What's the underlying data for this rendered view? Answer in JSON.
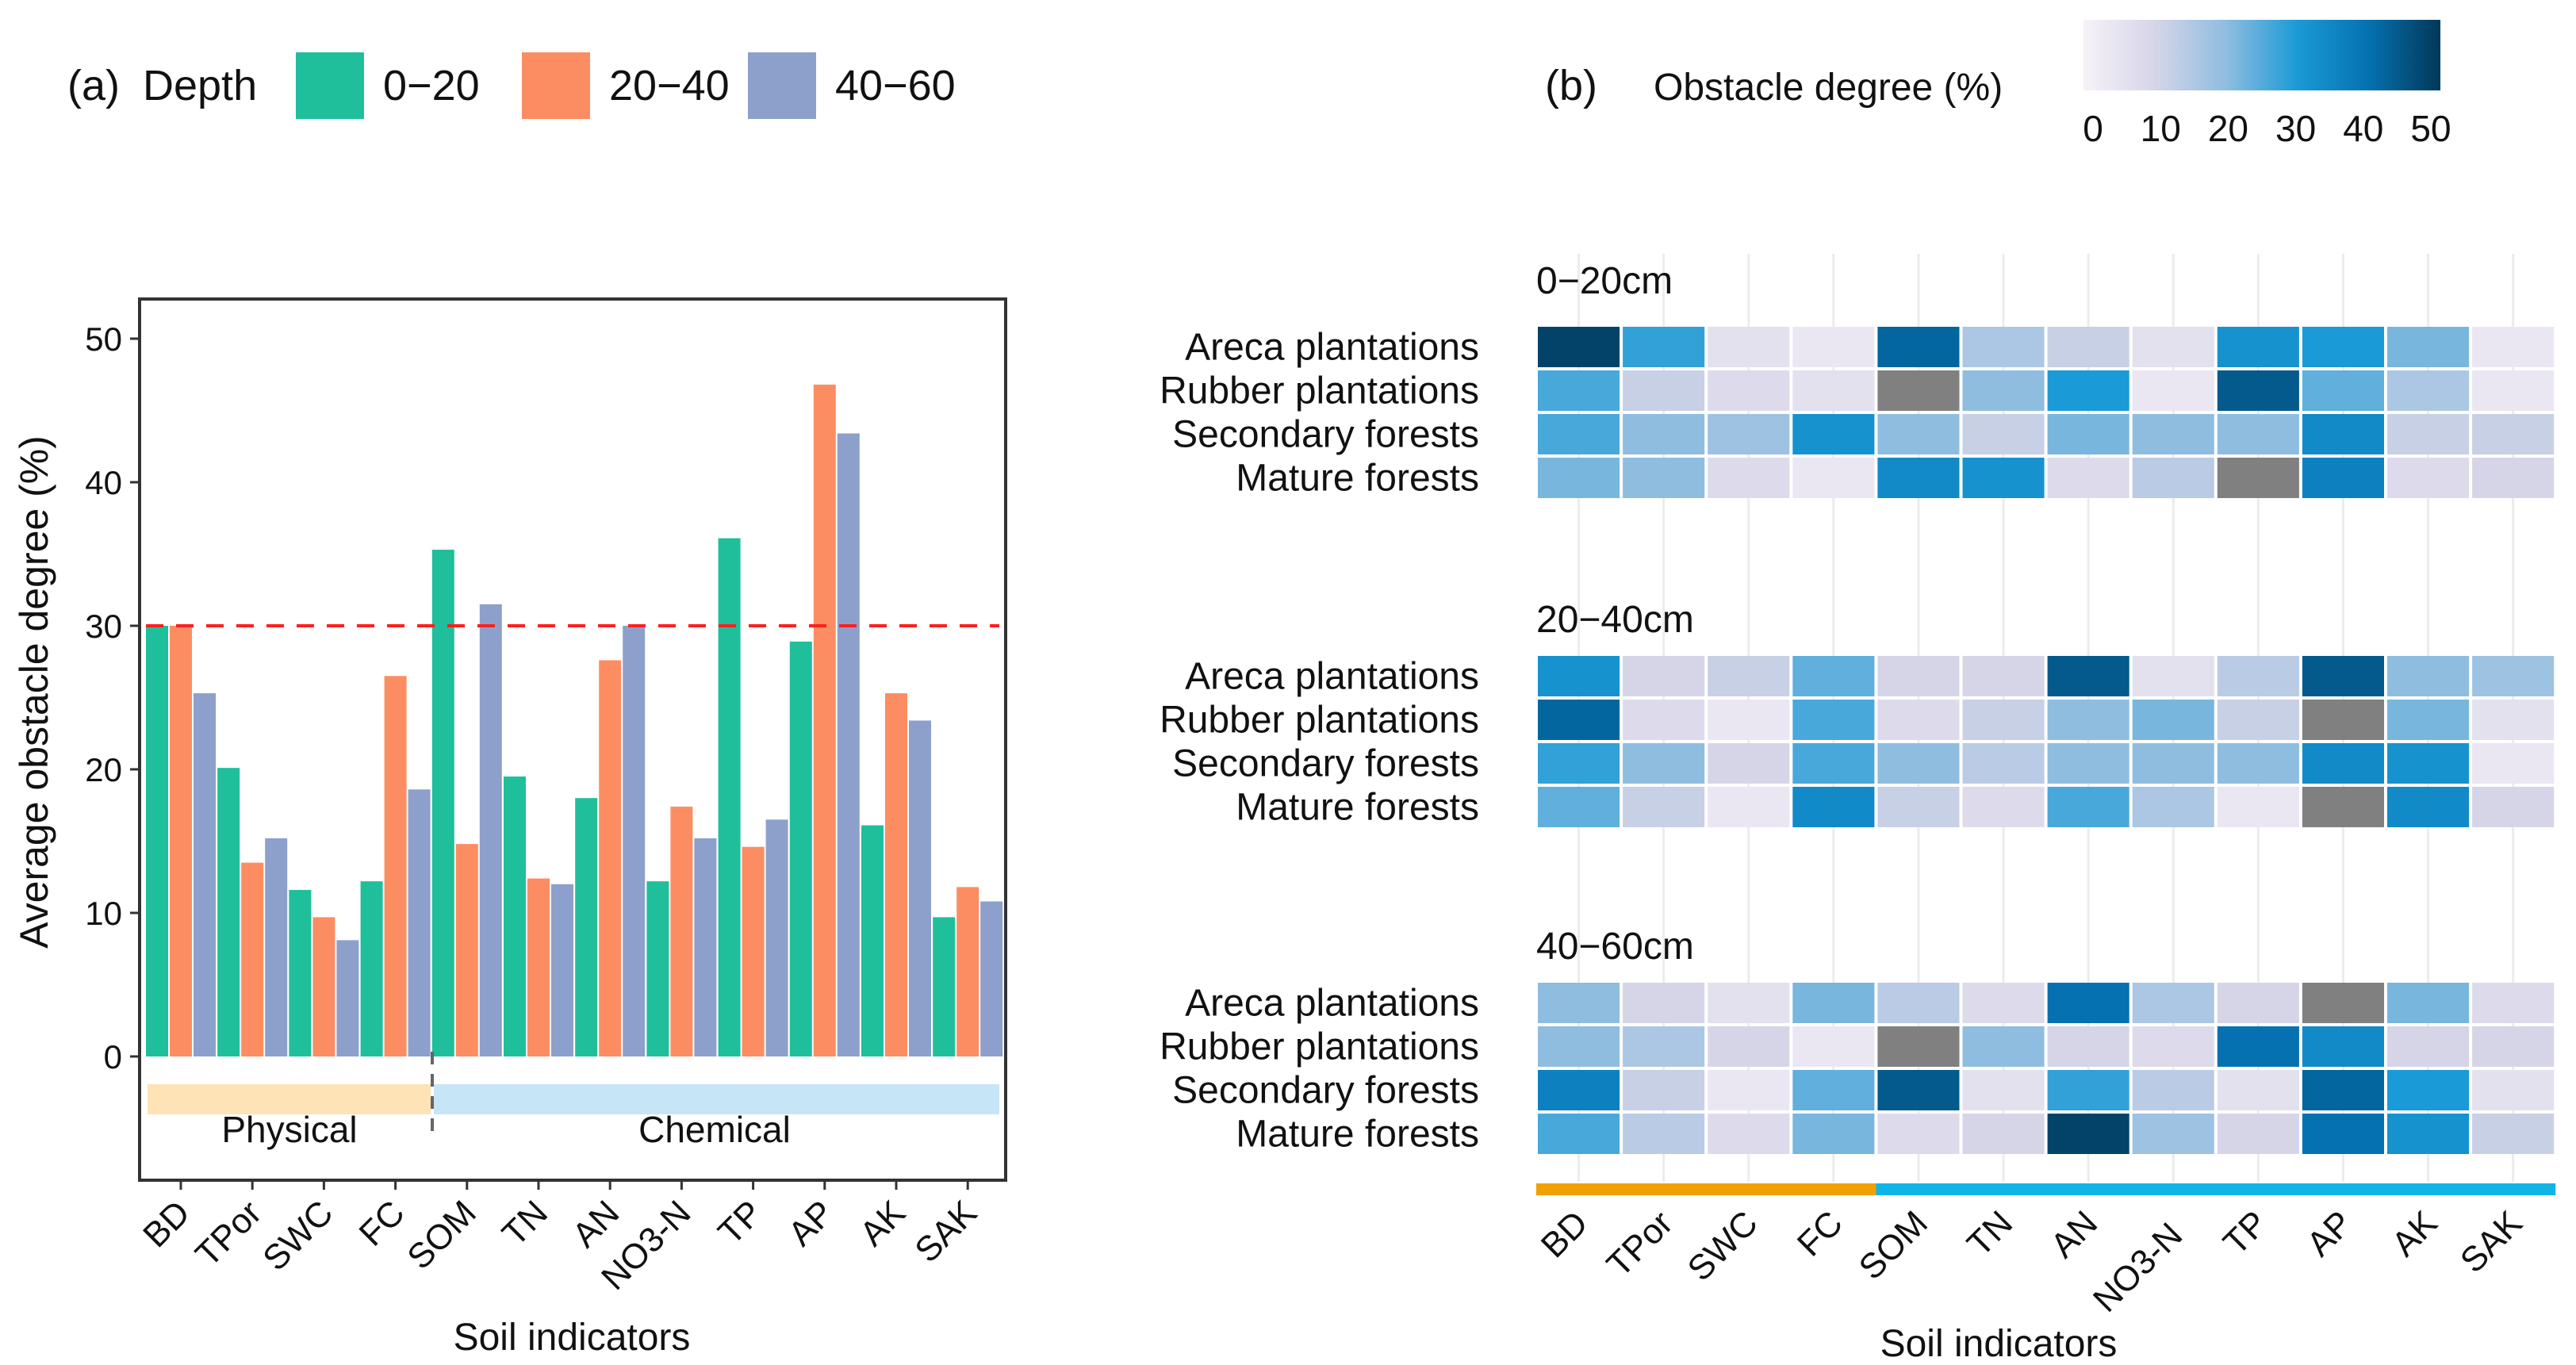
{
  "chart_data": [
    {
      "type": "bar",
      "panel_label": "(a)",
      "legend_title": "Depth",
      "legend_placement": "top",
      "ylabel": "Average obstacle degree (%)",
      "xlabel": "Soil indicators",
      "ylim": [
        -9,
        53
      ],
      "yticks": [
        0,
        10,
        20,
        30,
        40,
        50
      ],
      "categories": [
        "BD",
        "TPor",
        "SWC",
        "FC",
        "SOM",
        "TN",
        "AN",
        "NO3-N",
        "TP",
        "AP",
        "AK",
        "SAK"
      ],
      "series": [
        {
          "name": "0−20",
          "color": "#1fbf9b",
          "values": [
            30.0,
            20.1,
            11.6,
            12.2,
            35.3,
            19.5,
            18.0,
            12.2,
            36.1,
            28.9,
            16.1,
            9.7
          ]
        },
        {
          "name": "20−40",
          "color": "#fc8d62",
          "values": [
            30.0,
            13.5,
            9.7,
            26.5,
            14.8,
            12.4,
            27.6,
            17.4,
            14.6,
            46.8,
            25.3,
            11.8
          ]
        },
        {
          "name": "40−60",
          "color": "#8da0cb",
          "values": [
            25.3,
            15.2,
            8.1,
            18.6,
            31.5,
            12.0,
            30.0,
            15.2,
            16.5,
            43.4,
            23.4,
            10.8
          ]
        }
      ],
      "reference_line": {
        "value": 30,
        "color": "#ff2020",
        "style": "dashed"
      },
      "groups": [
        {
          "label": "Physical",
          "from": "BD",
          "to": "FC",
          "color": "#fde3b5"
        },
        {
          "label": "Chemical",
          "from": "SOM",
          "to": "SAK",
          "color": "#c6e6f7"
        }
      ],
      "grid": false
    },
    {
      "type": "heatmap",
      "panel_label": "(b)",
      "colorbar_title": "Obstacle degree (%)",
      "colorbar_ticks": [
        0,
        10,
        20,
        30,
        40,
        50
      ],
      "colorbar_range": [
        0,
        50
      ],
      "na_color": "#808080",
      "xlabel": "Soil indicators",
      "categories": [
        "BD",
        "TPor",
        "SWC",
        "FC",
        "SOM",
        "TN",
        "AN",
        "NO3-N",
        "TP",
        "AP",
        "AK",
        "SAK"
      ],
      "rows": [
        "Areca plantations",
        "Rubber plantations",
        "Secondary forests",
        "Mature forests"
      ],
      "category_groups": [
        {
          "from": "BD",
          "to": "FC",
          "color": "#f0a000"
        },
        {
          "from": "SOM",
          "to": "SAK",
          "color": "#10b4e6"
        }
      ],
      "panels": [
        {
          "title": "0−20cm",
          "values": [
            [
              48,
              28,
              6,
              4,
              42,
              16,
              12,
              6,
              32,
              30,
              22,
              4
            ],
            [
              26,
              12,
              8,
              6,
              null,
              20,
              30,
              4,
              44,
              24,
              16,
              4
            ],
            [
              26,
              20,
              18,
              32,
              20,
              12,
              22,
              20,
              20,
              34,
              12,
              12
            ],
            [
              22,
              20,
              8,
              4,
              34,
              32,
              8,
              14,
              null,
              36,
              8,
              10
            ]
          ]
        },
        {
          "title": "20−40cm",
          "values": [
            [
              32,
              10,
              12,
              24,
              10,
              10,
              44,
              6,
              14,
              44,
              20,
              18
            ],
            [
              42,
              8,
              4,
              26,
              8,
              12,
              20,
              22,
              12,
              null,
              22,
              6
            ],
            [
              28,
              20,
              10,
              26,
              20,
              14,
              20,
              20,
              20,
              34,
              32,
              4
            ],
            [
              24,
              12,
              4,
              34,
              12,
              8,
              26,
              16,
              4,
              null,
              34,
              10
            ]
          ]
        },
        {
          "title": "40−60cm",
          "values": [
            [
              20,
              10,
              6,
              22,
              14,
              8,
              40,
              16,
              10,
              null,
              22,
              8
            ],
            [
              20,
              16,
              10,
              4,
              null,
              20,
              10,
              8,
              40,
              34,
              10,
              10
            ],
            [
              36,
              12,
              4,
              24,
              44,
              6,
              28,
              14,
              6,
              42,
              30,
              6
            ],
            [
              26,
              14,
              8,
              22,
              8,
              10,
              48,
              18,
              10,
              40,
              32,
              12
            ]
          ]
        }
      ]
    }
  ]
}
